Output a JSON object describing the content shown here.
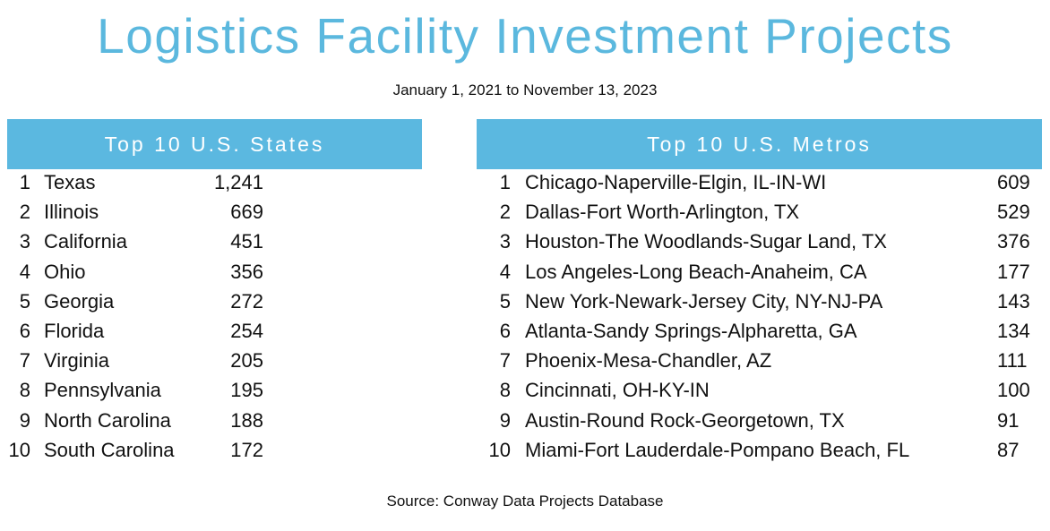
{
  "title": "Logistics Facility Investment Projects",
  "subtitle": "January 1, 2021 to November 13, 2023",
  "accent_color": "#5bb8e0",
  "states": {
    "heading": "Top 10 U.S. States",
    "rows": [
      {
        "rank": "1",
        "name": "Texas",
        "value": "1,241"
      },
      {
        "rank": "2",
        "name": "Illinois",
        "value": "669"
      },
      {
        "rank": "3",
        "name": "California",
        "value": "451"
      },
      {
        "rank": "4",
        "name": "Ohio",
        "value": "356"
      },
      {
        "rank": "5",
        "name": "Georgia",
        "value": "272"
      },
      {
        "rank": "6",
        "name": "Florida",
        "value": "254"
      },
      {
        "rank": "7",
        "name": "Virginia",
        "value": "205"
      },
      {
        "rank": "8",
        "name": "Pennsylvania",
        "value": "195"
      },
      {
        "rank": "9",
        "name": "North Carolina",
        "value": "188"
      },
      {
        "rank": "10",
        "name": "South Carolina",
        "value": "172"
      }
    ]
  },
  "metros": {
    "heading": "Top 10 U.S. Metros",
    "rows": [
      {
        "rank": "1",
        "name": "Chicago-Naperville-Elgin, IL-IN-WI",
        "value": "609"
      },
      {
        "rank": "2",
        "name": "Dallas-Fort Worth-Arlington, TX",
        "value": "529"
      },
      {
        "rank": "3",
        "name": "Houston-The Woodlands-Sugar Land, TX",
        "value": "376"
      },
      {
        "rank": "4",
        "name": "Los Angeles-Long Beach-Anaheim, CA",
        "value": "177"
      },
      {
        "rank": "5",
        "name": "New York-Newark-Jersey City, NY-NJ-PA",
        "value": "143"
      },
      {
        "rank": "6",
        "name": "Atlanta-Sandy Springs-Alpharetta, GA",
        "value": "134"
      },
      {
        "rank": "7",
        "name": "Phoenix-Mesa-Chandler, AZ",
        "value": "111"
      },
      {
        "rank": "8",
        "name": "Cincinnati, OH-KY-IN",
        "value": "100"
      },
      {
        "rank": "9",
        "name": "Austin-Round Rock-Georgetown, TX",
        "value": "91"
      },
      {
        "rank": "10",
        "name": "Miami-Fort Lauderdale-Pompano Beach, FL",
        "value": "87"
      }
    ]
  },
  "source": "Source: Conway Data Projects Database"
}
